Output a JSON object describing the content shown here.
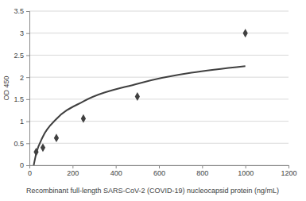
{
  "chart_data": {
    "type": "scatter",
    "x_label": "Recombinant full-length SARS-CoV-2 (COVID-19) nucleocapsid protein (ng/mL)",
    "y_label": "OD 450",
    "xlim": [
      0,
      1200
    ],
    "xticks": [
      0,
      200,
      400,
      600,
      800,
      1000,
      1200
    ],
    "ylim": [
      0,
      3.5
    ],
    "yticks": [
      0,
      0.5,
      1,
      1.5,
      2,
      2.5,
      3,
      3.5
    ],
    "grid": true,
    "series": [
      {
        "type": "scatter",
        "marker": "diamond",
        "color": "#404040",
        "x": [
          31.25,
          62.5,
          125,
          250,
          500,
          1000
        ],
        "values": [
          0.3,
          0.4,
          0.62,
          1.06,
          1.56,
          3.0
        ]
      },
      {
        "type": "line",
        "line_style": "solid",
        "color": "#404040",
        "x": [
          20,
          31.25,
          62.5,
          125,
          250,
          500,
          1000
        ],
        "values": [
          0,
          0.26,
          0.65,
          1.05,
          1.45,
          1.85,
          2.25
        ]
      }
    ]
  }
}
